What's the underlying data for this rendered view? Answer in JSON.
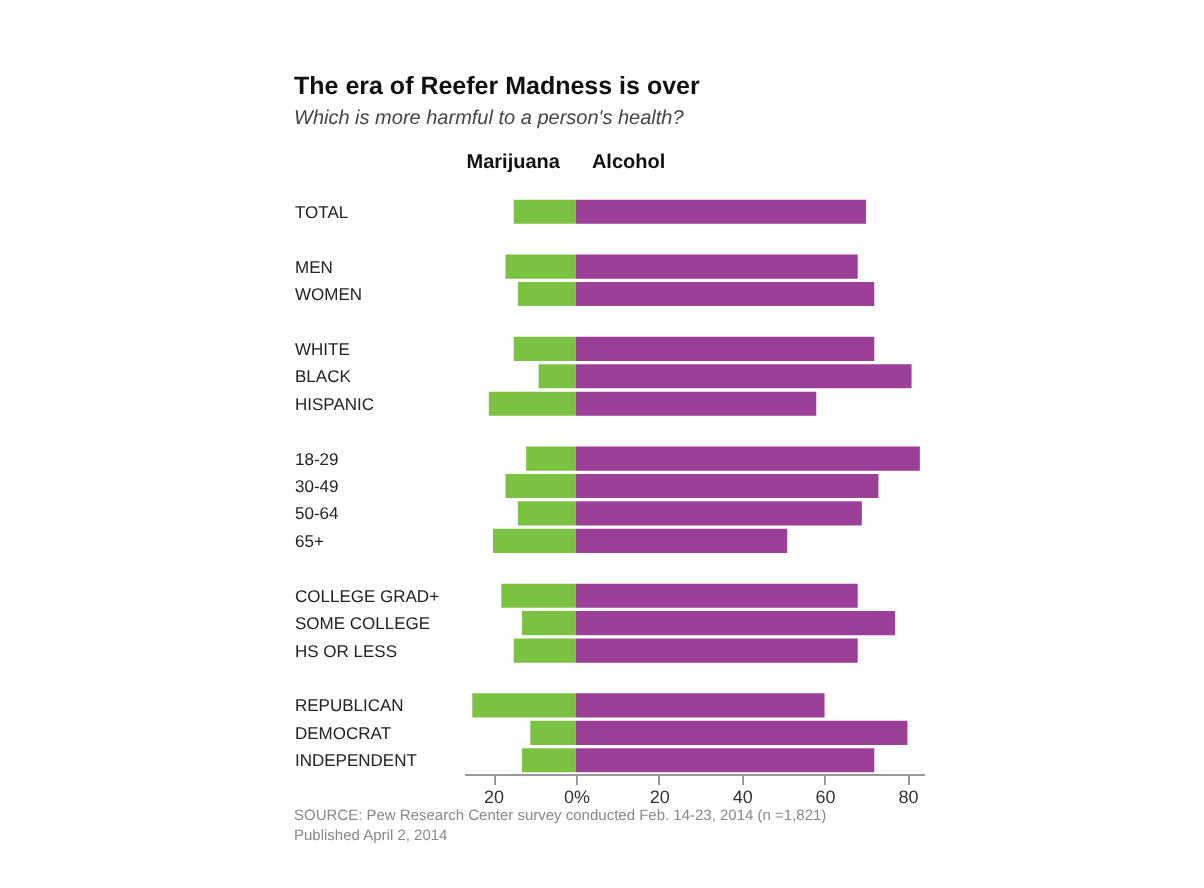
{
  "chart_data": {
    "type": "bar",
    "orientation": "horizontal",
    "stacked": true,
    "title": "The era of Reefer Madness is over",
    "subtitle": "Which is more harmful to a person's health?",
    "categories": [
      "TOTAL",
      null,
      "MEN",
      "WOMEN",
      null,
      "WHITE",
      "BLACK",
      "HISPANIC",
      null,
      "18-29",
      "30-49",
      "50-64",
      "65+",
      null,
      "COLLEGE GRAD+",
      "SOME COLLEGE",
      "HS OR LESS",
      null,
      "REPUBLICAN",
      "DEMOCRAT",
      "INDEPENDENT"
    ],
    "series": [
      {
        "name": "Marijuana",
        "color": "#7cc242",
        "values": [
          -15,
          null,
          -17,
          -14,
          null,
          -15,
          -9,
          -21,
          null,
          -12,
          -17,
          -14,
          -20,
          null,
          -18,
          -13,
          -15,
          null,
          -25,
          -11,
          -13
        ]
      },
      {
        "name": "Alcohol",
        "color": "#9b3f98",
        "values": [
          70,
          null,
          68,
          72,
          null,
          72,
          81,
          58,
          null,
          83,
          73,
          69,
          51,
          null,
          68,
          77,
          68,
          null,
          60,
          80,
          72
        ]
      }
    ],
    "xlim": [
      -27,
      84
    ],
    "xticks": [
      {
        "value": -20,
        "label": "20"
      },
      {
        "value": 0,
        "label": "0%"
      },
      20,
      40,
      60,
      80
    ],
    "annotations": [
      "SOURCE: Pew Research Center survey conducted Feb. 14-23, 2014 (n =1,821)",
      "Published April 2, 2014"
    ]
  }
}
